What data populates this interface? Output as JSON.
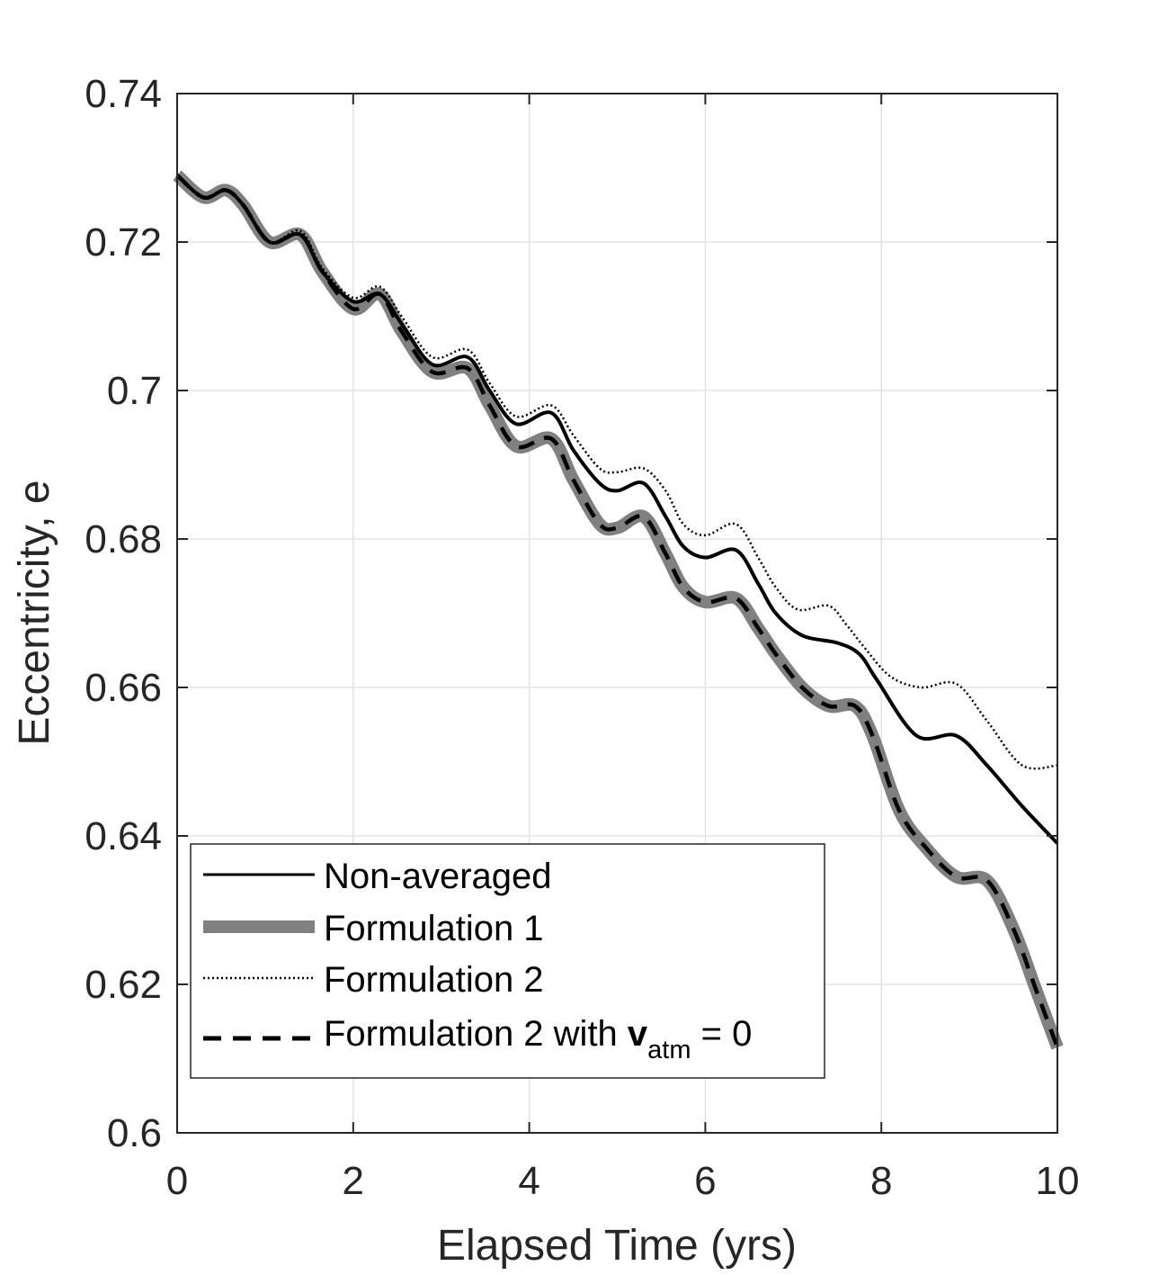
{
  "chart_data": {
    "type": "line",
    "title": "",
    "xlabel": "Elapsed Time (yrs)",
    "ylabel": "Eccentricity, e",
    "xlim": [
      0,
      10
    ],
    "ylim": [
      0.6,
      0.74
    ],
    "xticks": [
      0,
      2,
      4,
      6,
      8,
      10
    ],
    "xtick_labels": [
      "0",
      "2",
      "4",
      "6",
      "8",
      "10"
    ],
    "yticks": [
      0.6,
      0.62,
      0.64,
      0.66,
      0.68,
      0.7,
      0.72,
      0.74
    ],
    "ytick_labels": [
      "0.6",
      "0.62",
      "0.64",
      "0.66",
      "0.68",
      "0.7",
      "0.72",
      "0.74"
    ],
    "grid": true,
    "legend_position": "bottom-left",
    "colors": {
      "non_averaged": "#000000",
      "formulation_1": "#808080",
      "formulation_2": "#000000",
      "formulation_2_vatm0": "#000000",
      "grid": "#e3e3e3",
      "axes": "#262626"
    },
    "series": [
      {
        "key": "non_averaged",
        "name": "Non-averaged",
        "style": "solid",
        "x": [
          0,
          0.3,
          0.55,
          0.75,
          1.05,
          1.4,
          1.65,
          2.0,
          2.3,
          2.55,
          2.9,
          3.3,
          3.55,
          3.85,
          4.25,
          4.5,
          4.8,
          5.0,
          5.3,
          5.55,
          5.75,
          6.0,
          6.35,
          6.6,
          6.8,
          7.1,
          7.5,
          7.75,
          7.95,
          8.4,
          8.85,
          9.2,
          9.6,
          10.0
        ],
        "y": [
          0.729,
          0.726,
          0.727,
          0.725,
          0.72,
          0.721,
          0.716,
          0.712,
          0.713,
          0.709,
          0.7035,
          0.7045,
          0.7,
          0.6955,
          0.697,
          0.692,
          0.6875,
          0.6865,
          0.6875,
          0.683,
          0.679,
          0.6775,
          0.6785,
          0.674,
          0.67,
          0.667,
          0.666,
          0.6645,
          0.661,
          0.6535,
          0.6535,
          0.6495,
          0.644,
          0.639
        ]
      },
      {
        "key": "formulation_1",
        "name": "Formulation 1",
        "style": "thick",
        "x": [
          0,
          0.3,
          0.55,
          0.75,
          1.05,
          1.4,
          1.65,
          2.0,
          2.3,
          2.55,
          2.9,
          3.3,
          3.55,
          3.85,
          4.25,
          4.5,
          4.8,
          5.0,
          5.3,
          5.55,
          5.75,
          6.0,
          6.35,
          6.6,
          6.8,
          7.1,
          7.4,
          7.7,
          7.9,
          8.2,
          8.5,
          8.85,
          9.2,
          9.5,
          9.75,
          10.0
        ],
        "y": [
          0.729,
          0.726,
          0.727,
          0.725,
          0.72,
          0.721,
          0.716,
          0.711,
          0.713,
          0.708,
          0.7025,
          0.703,
          0.698,
          0.6925,
          0.6935,
          0.688,
          0.682,
          0.6815,
          0.683,
          0.678,
          0.6735,
          0.6715,
          0.672,
          0.668,
          0.6645,
          0.66,
          0.6575,
          0.6575,
          0.6535,
          0.6435,
          0.6385,
          0.6345,
          0.634,
          0.6275,
          0.6195,
          0.6115
        ]
      },
      {
        "key": "formulation_2",
        "name": "Formulation 2",
        "style": "dotted",
        "x": [
          0,
          0.3,
          0.55,
          0.75,
          1.05,
          1.4,
          1.65,
          2.0,
          2.3,
          2.55,
          2.9,
          3.3,
          3.55,
          3.85,
          4.25,
          4.5,
          4.8,
          5.0,
          5.3,
          5.55,
          5.75,
          6.0,
          6.35,
          6.6,
          6.8,
          7.05,
          7.4,
          7.6,
          7.8,
          8.1,
          8.45,
          8.85,
          9.2,
          9.6,
          10.0
        ],
        "y": [
          0.729,
          0.726,
          0.727,
          0.725,
          0.72,
          0.7215,
          0.7165,
          0.7125,
          0.714,
          0.71,
          0.7045,
          0.7055,
          0.701,
          0.6965,
          0.698,
          0.694,
          0.6895,
          0.689,
          0.6895,
          0.6865,
          0.682,
          0.6805,
          0.682,
          0.6775,
          0.6735,
          0.6705,
          0.671,
          0.6685,
          0.6655,
          0.6615,
          0.66,
          0.6605,
          0.6555,
          0.6495,
          0.6495
        ]
      },
      {
        "key": "formulation_2_vatm0",
        "name": "Formulation 2 with ",
        "name_bold": "v",
        "name_sub": "atm",
        "name_suffix": " = 0",
        "style": "dashed",
        "x": [
          0,
          0.3,
          0.55,
          0.75,
          1.05,
          1.4,
          1.65,
          2.0,
          2.3,
          2.55,
          2.9,
          3.3,
          3.55,
          3.85,
          4.25,
          4.5,
          4.8,
          5.0,
          5.3,
          5.55,
          5.75,
          6.0,
          6.35,
          6.6,
          6.8,
          7.1,
          7.4,
          7.7,
          7.9,
          8.2,
          8.5,
          8.85,
          9.2,
          9.5,
          9.75,
          10.0
        ],
        "y": [
          0.729,
          0.726,
          0.727,
          0.725,
          0.72,
          0.721,
          0.716,
          0.711,
          0.713,
          0.708,
          0.7025,
          0.703,
          0.698,
          0.6925,
          0.6935,
          0.688,
          0.682,
          0.6815,
          0.683,
          0.678,
          0.6735,
          0.6715,
          0.672,
          0.668,
          0.6645,
          0.66,
          0.6575,
          0.6575,
          0.6535,
          0.6435,
          0.6385,
          0.6345,
          0.634,
          0.6275,
          0.6195,
          0.6115
        ]
      }
    ]
  }
}
